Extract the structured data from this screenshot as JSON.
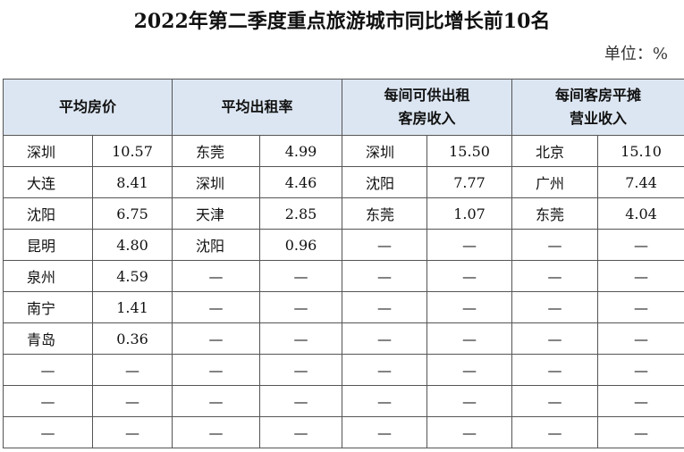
{
  "title": "2022年第二季度重点旅游城市同比增长前10名",
  "unit": "单位：%",
  "headers": [
    "平均房价",
    "平均出租率",
    "每间可供出租\n客房收入",
    "每间客房平摊\n营业收入"
  ],
  "rows": [
    [
      "深圳",
      "10.57",
      "东莞",
      "4.99",
      "深圳",
      "15.50",
      "北京",
      "15.10"
    ],
    [
      "大连",
      "8.41",
      "深圳",
      "4.46",
      "沈阳",
      "7.77",
      "广州",
      "7.44"
    ],
    [
      "沈阳",
      "6.75",
      "天津",
      "2.85",
      "东莞",
      "1.07",
      "东莞",
      "4.04"
    ],
    [
      "昆明",
      "4.80",
      "沈阳",
      "0.96",
      "—",
      "—",
      "—",
      "—"
    ],
    [
      "泉州",
      "4.59",
      "—",
      "—",
      "—",
      "—",
      "—",
      "—"
    ],
    [
      "南宁",
      "1.41",
      "—",
      "—",
      "—",
      "—",
      "—",
      "—"
    ],
    [
      "青岛",
      "0.36",
      "—",
      "—",
      "—",
      "—",
      "—",
      "—"
    ],
    [
      "—",
      "—",
      "—",
      "—",
      "—",
      "—",
      "—",
      "—"
    ],
    [
      "—",
      "—",
      "—",
      "—",
      "—",
      "—",
      "—",
      "—"
    ],
    [
      "—",
      "—",
      "—",
      "—",
      "—",
      "—",
      "—",
      "—"
    ]
  ],
  "colors": {
    "header_bg": "#dce6f2"
  }
}
